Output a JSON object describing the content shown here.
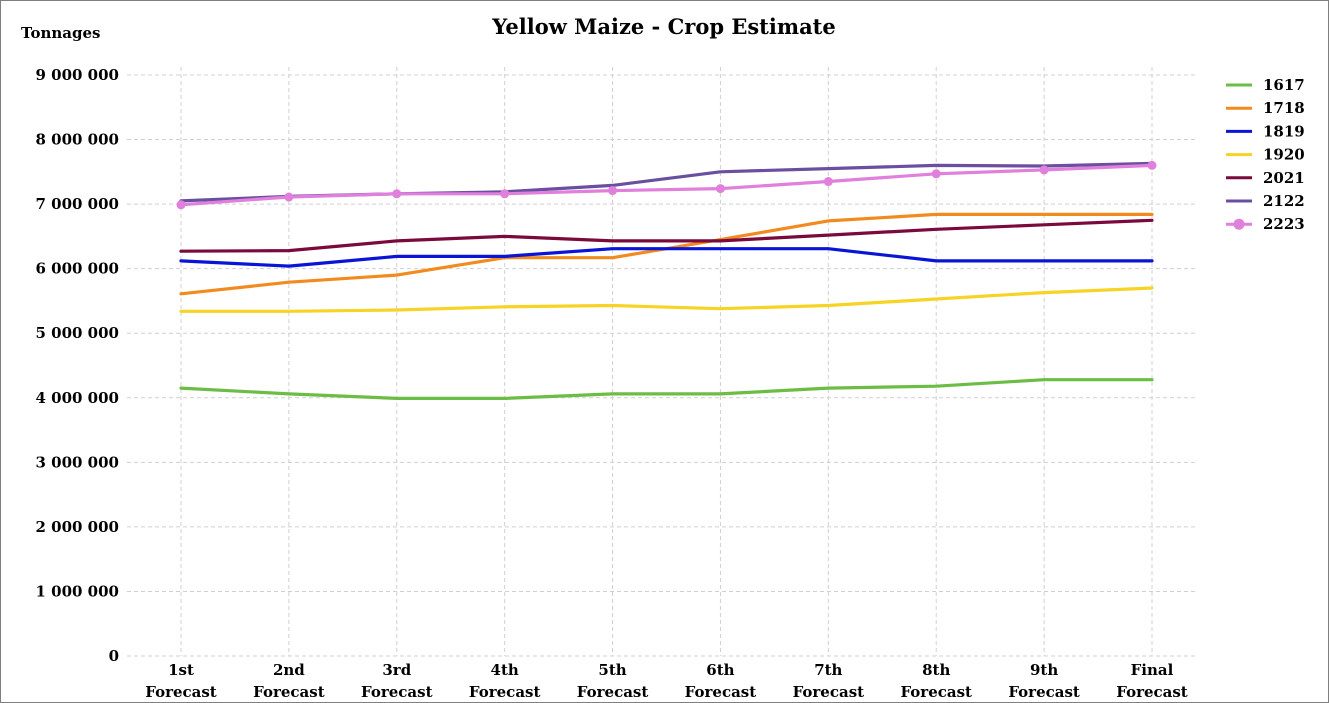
{
  "chart_data": {
    "type": "line",
    "title": "Yellow Maize - Crop Estimate",
    "ylabel": "Tonnages",
    "xlabel": "",
    "ylim": [
      0,
      9000000
    ],
    "yticks": [
      0,
      1000000,
      2000000,
      3000000,
      4000000,
      5000000,
      6000000,
      7000000,
      8000000,
      9000000
    ],
    "ytick_labels": [
      "0",
      "1 000 000",
      "2 000 000",
      "3 000 000",
      "4 000 000",
      "5 000 000",
      "6 000 000",
      "7 000 000",
      "8 000 000",
      "9 000 000"
    ],
    "categories": [
      [
        "1st",
        "Forecast"
      ],
      [
        "2nd",
        "Forecast"
      ],
      [
        "3rd",
        "Forecast"
      ],
      [
        "4th",
        "Forecast"
      ],
      [
        "5th",
        "Forecast"
      ],
      [
        "6th",
        "Forecast"
      ],
      [
        "7th",
        "Forecast"
      ],
      [
        "8th",
        "Forecast"
      ],
      [
        "9th",
        "Forecast"
      ],
      [
        "Final",
        "Forecast"
      ]
    ],
    "grid": true,
    "legend_position": "right",
    "series": [
      {
        "name": "1617",
        "color": "#6cbd45",
        "markers": false,
        "values": [
          4150000,
          4060000,
          3990000,
          3990000,
          4060000,
          4060000,
          4150000,
          4180000,
          4280000,
          4280000
        ]
      },
      {
        "name": "1718",
        "color": "#f28b1f",
        "markers": false,
        "values": [
          5610000,
          5790000,
          5900000,
          6170000,
          6170000,
          6450000,
          6740000,
          6840000,
          6840000,
          6840000
        ]
      },
      {
        "name": "1819",
        "color": "#0a14d6",
        "markers": false,
        "values": [
          6120000,
          6040000,
          6190000,
          6190000,
          6310000,
          6310000,
          6310000,
          6120000,
          6120000,
          6120000
        ]
      },
      {
        "name": "1920",
        "color": "#f7d326",
        "markers": false,
        "values": [
          5340000,
          5340000,
          5360000,
          5410000,
          5430000,
          5380000,
          5430000,
          5530000,
          5630000,
          5700000
        ]
      },
      {
        "name": "2021",
        "color": "#7a0a3c",
        "markers": false,
        "values": [
          6270000,
          6280000,
          6430000,
          6500000,
          6430000,
          6430000,
          6520000,
          6610000,
          6680000,
          6750000
        ]
      },
      {
        "name": "2122",
        "color": "#6a4fa0",
        "markers": false,
        "values": [
          7050000,
          7120000,
          7160000,
          7190000,
          7290000,
          7500000,
          7550000,
          7600000,
          7590000,
          7630000
        ]
      },
      {
        "name": "2223",
        "color": "#e07fdc",
        "markers": true,
        "values": [
          6990000,
          7110000,
          7160000,
          7160000,
          7210000,
          7240000,
          7350000,
          7470000,
          7530000,
          7600000
        ]
      }
    ]
  }
}
